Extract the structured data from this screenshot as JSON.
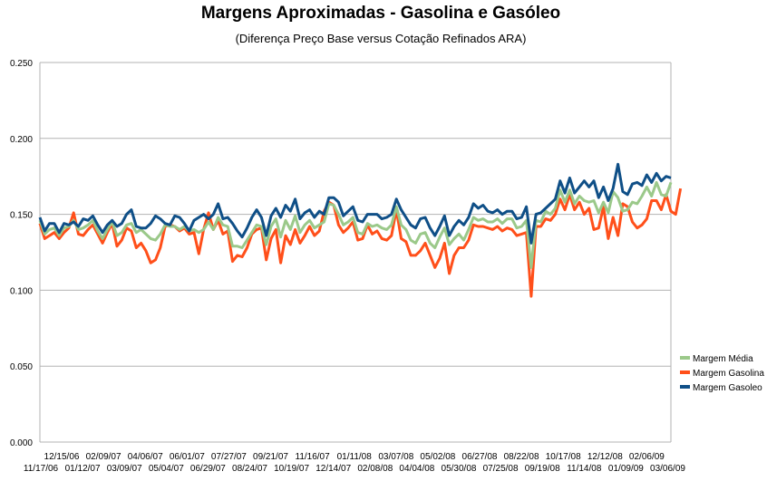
{
  "chart_data": {
    "type": "line",
    "title": "Margens Aproximadas - Gasolina e Gasóleo",
    "subtitle": "(Diferença Preço Base versus Cotação Refinados ARA)",
    "xlabel": "",
    "ylabel": "",
    "ylim": [
      0,
      0.25
    ],
    "yticks": [
      "0.000",
      "0.050",
      "0.100",
      "0.150",
      "0.200",
      "0.250"
    ],
    "grid": true,
    "legend_position": "right",
    "x_tick_labels_top": [
      "12/15/06",
      "02/09/07",
      "04/06/07",
      "06/01/07",
      "07/27/07",
      "09/21/07",
      "11/16/07",
      "01/11/08",
      "03/07/08",
      "05/02/08",
      "06/27/08",
      "08/22/08",
      "10/17/08",
      "12/12/08",
      "02/06/09"
    ],
    "x_tick_labels_bottom": [
      "11/17/06",
      "01/12/07",
      "03/09/07",
      "05/04/07",
      "06/29/07",
      "08/24/07",
      "10/19/07",
      "12/14/07",
      "02/08/08",
      "04/04/08",
      "05/30/08",
      "07/25/08",
      "09/19/08",
      "11/14/08",
      "01/09/09",
      "03/06/09"
    ],
    "series": [
      {
        "name": "Margem Média",
        "color": "#9bc98a",
        "values": [
          0.146,
          0.137,
          0.14,
          0.141,
          0.136,
          0.141,
          0.142,
          0.146,
          0.14,
          0.141,
          0.143,
          0.146,
          0.139,
          0.134,
          0.14,
          0.145,
          0.136,
          0.138,
          0.143,
          0.144,
          0.138,
          0.14,
          0.137,
          0.134,
          0.133,
          0.137,
          0.143,
          0.142,
          0.142,
          0.14,
          0.142,
          0.139,
          0.14,
          0.138,
          0.14,
          0.145,
          0.14,
          0.148,
          0.143,
          0.142,
          0.129,
          0.129,
          0.128,
          0.133,
          0.138,
          0.143,
          0.142,
          0.13,
          0.142,
          0.147,
          0.135,
          0.146,
          0.14,
          0.149,
          0.138,
          0.143,
          0.146,
          0.141,
          0.143,
          0.145,
          0.157,
          0.156,
          0.15,
          0.143,
          0.145,
          0.148,
          0.138,
          0.137,
          0.144,
          0.142,
          0.143,
          0.141,
          0.14,
          0.143,
          0.155,
          0.143,
          0.14,
          0.133,
          0.131,
          0.137,
          0.138,
          0.131,
          0.128,
          0.135,
          0.141,
          0.13,
          0.134,
          0.137,
          0.133,
          0.14,
          0.148,
          0.146,
          0.147,
          0.145,
          0.145,
          0.147,
          0.144,
          0.147,
          0.147,
          0.141,
          0.142,
          0.146,
          0.115,
          0.146,
          0.145,
          0.152,
          0.15,
          0.154,
          0.166,
          0.158,
          0.166,
          0.157,
          0.162,
          0.159,
          0.158,
          0.159,
          0.151,
          0.158,
          0.151,
          0.165,
          0.161,
          0.152,
          0.153,
          0.158,
          0.157,
          0.162,
          0.168,
          0.162,
          0.171,
          0.163,
          0.162,
          0.171
        ]
      },
      {
        "name": "Margem Gasolina",
        "color": "#ff4f1a",
        "values": [
          0.144,
          0.134,
          0.136,
          0.138,
          0.134,
          0.138,
          0.141,
          0.151,
          0.137,
          0.136,
          0.14,
          0.143,
          0.137,
          0.131,
          0.138,
          0.144,
          0.129,
          0.133,
          0.141,
          0.139,
          0.128,
          0.131,
          0.126,
          0.118,
          0.12,
          0.128,
          0.142,
          0.143,
          0.142,
          0.139,
          0.141,
          0.137,
          0.138,
          0.124,
          0.14,
          0.151,
          0.14,
          0.146,
          0.137,
          0.139,
          0.119,
          0.123,
          0.122,
          0.128,
          0.137,
          0.14,
          0.141,
          0.12,
          0.134,
          0.14,
          0.118,
          0.136,
          0.13,
          0.14,
          0.131,
          0.136,
          0.142,
          0.136,
          0.139,
          0.152,
          0.158,
          0.156,
          0.143,
          0.138,
          0.141,
          0.145,
          0.133,
          0.134,
          0.143,
          0.137,
          0.139,
          0.134,
          0.133,
          0.136,
          0.153,
          0.134,
          0.132,
          0.123,
          0.123,
          0.126,
          0.131,
          0.123,
          0.115,
          0.121,
          0.131,
          0.111,
          0.123,
          0.128,
          0.128,
          0.133,
          0.143,
          0.142,
          0.142,
          0.141,
          0.14,
          0.142,
          0.139,
          0.141,
          0.14,
          0.136,
          0.137,
          0.138,
          0.096,
          0.142,
          0.142,
          0.147,
          0.146,
          0.15,
          0.16,
          0.153,
          0.163,
          0.153,
          0.158,
          0.15,
          0.154,
          0.14,
          0.141,
          0.155,
          0.134,
          0.148,
          0.136,
          0.157,
          0.155,
          0.145,
          0.141,
          0.143,
          0.147,
          0.159,
          0.159,
          0.153,
          0.163,
          0.152,
          0.15,
          0.167
        ]
      },
      {
        "name": "Margem Gasoleo",
        "color": "#0f4f87",
        "values": [
          0.148,
          0.139,
          0.144,
          0.144,
          0.138,
          0.144,
          0.143,
          0.145,
          0.142,
          0.147,
          0.146,
          0.149,
          0.143,
          0.138,
          0.143,
          0.146,
          0.142,
          0.144,
          0.15,
          0.153,
          0.142,
          0.141,
          0.141,
          0.144,
          0.149,
          0.147,
          0.144,
          0.143,
          0.149,
          0.148,
          0.144,
          0.139,
          0.146,
          0.148,
          0.15,
          0.147,
          0.15,
          0.157,
          0.147,
          0.148,
          0.144,
          0.139,
          0.135,
          0.141,
          0.148,
          0.153,
          0.148,
          0.136,
          0.149,
          0.154,
          0.148,
          0.156,
          0.152,
          0.16,
          0.147,
          0.151,
          0.153,
          0.148,
          0.152,
          0.15,
          0.161,
          0.161,
          0.158,
          0.149,
          0.152,
          0.155,
          0.146,
          0.145,
          0.15,
          0.15,
          0.15,
          0.147,
          0.148,
          0.15,
          0.16,
          0.153,
          0.148,
          0.143,
          0.141,
          0.147,
          0.148,
          0.141,
          0.136,
          0.142,
          0.149,
          0.136,
          0.142,
          0.146,
          0.143,
          0.148,
          0.157,
          0.154,
          0.156,
          0.152,
          0.151,
          0.153,
          0.15,
          0.152,
          0.152,
          0.147,
          0.148,
          0.155,
          0.131,
          0.15,
          0.151,
          0.154,
          0.157,
          0.16,
          0.172,
          0.164,
          0.174,
          0.164,
          0.168,
          0.172,
          0.168,
          0.172,
          0.161,
          0.168,
          0.159,
          0.167,
          0.183,
          0.165,
          0.163,
          0.17,
          0.171,
          0.169,
          0.176,
          0.171,
          0.177,
          0.172,
          0.175,
          0.174
        ]
      }
    ]
  }
}
